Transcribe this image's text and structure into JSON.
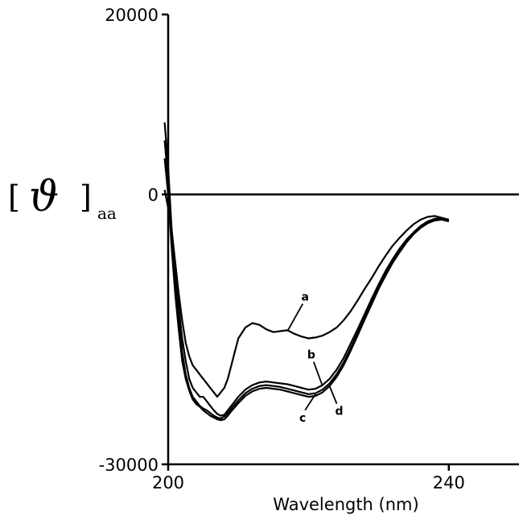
{
  "chart_data": {
    "type": "line",
    "title": "",
    "xlabel": "Wavelength (nm)",
    "ylabel": {
      "bracket_open": "[",
      "symbol": "ϑ",
      "bracket_close": "]",
      "subscript": "aa"
    },
    "xlim": [
      200,
      250
    ],
    "ylim": [
      -30000,
      20000
    ],
    "x_ticks": [
      200,
      240
    ],
    "y_ticks": [
      20000,
      0,
      -30000
    ],
    "zero_line": true,
    "grid": false,
    "legend": "none",
    "series": [
      {
        "name": "a",
        "x": [
          199.5,
          200,
          200.5,
          201,
          201.5,
          202,
          202.5,
          203,
          203.5,
          204,
          204.5,
          205,
          205.5,
          206,
          206.5,
          207,
          207.5,
          208,
          208.5,
          209,
          209.5,
          210,
          211,
          212,
          213,
          214,
          215,
          216,
          217,
          218,
          219,
          220,
          221,
          222,
          223,
          224,
          225,
          226,
          227,
          228,
          229,
          230,
          231,
          232,
          233,
          234,
          235,
          236,
          237,
          238,
          239,
          240
        ],
        "y": [
          500,
          -1500,
          -4000,
          -7500,
          -11000,
          -14000,
          -16500,
          -18000,
          -19000,
          -19500,
          -20000,
          -20500,
          -21000,
          -21500,
          -22000,
          -22500,
          -22000,
          -21500,
          -20500,
          -19000,
          -17500,
          -16000,
          -14800,
          -14300,
          -14500,
          -15000,
          -15300,
          -15200,
          -15100,
          -15500,
          -15800,
          -16000,
          -15900,
          -15700,
          -15300,
          -14800,
          -14000,
          -13000,
          -11800,
          -10500,
          -9300,
          -8000,
          -6800,
          -5700,
          -4800,
          -4000,
          -3300,
          -2800,
          -2500,
          -2400,
          -2600,
          -3000
        ]
      },
      {
        "name": "b",
        "x": [
          199.5,
          200,
          200.5,
          201,
          201.5,
          202,
          202.5,
          203,
          203.5,
          204,
          204.5,
          205,
          205.5,
          206,
          206.5,
          207,
          207.5,
          208,
          208.5,
          209,
          210,
          211,
          212,
          213,
          214,
          215,
          216,
          217,
          218,
          219,
          220,
          221,
          222,
          223,
          224,
          225,
          226,
          227,
          228,
          229,
          230,
          231,
          232,
          233,
          234,
          235,
          236,
          237,
          238,
          239,
          240
        ],
        "y": [
          8000,
          3000,
          -4000,
          -9000,
          -12500,
          -16000,
          -18500,
          -20500,
          -21500,
          -22000,
          -22500,
          -22500,
          -23000,
          -23500,
          -24000,
          -24400,
          -24600,
          -24500,
          -24000,
          -23500,
          -22500,
          -21700,
          -21200,
          -20900,
          -20800,
          -20900,
          -21000,
          -21100,
          -21300,
          -21500,
          -21700,
          -21600,
          -21200,
          -20500,
          -19500,
          -18200,
          -16600,
          -15000,
          -13300,
          -11600,
          -10000,
          -8500,
          -7200,
          -6000,
          -5000,
          -4200,
          -3500,
          -3000,
          -2700,
          -2600,
          -2800
        ]
      },
      {
        "name": "c",
        "x": [
          199.5,
          200,
          200.5,
          201,
          201.5,
          202,
          202.5,
          203,
          203.5,
          204,
          204.5,
          205,
          205.5,
          206,
          206.5,
          207,
          207.5,
          208,
          208.5,
          209,
          210,
          211,
          212,
          213,
          214,
          215,
          216,
          217,
          218,
          219,
          220,
          221,
          222,
          223,
          224,
          225,
          226,
          227,
          228,
          229,
          230,
          231,
          232,
          233,
          234,
          235,
          236,
          237,
          238,
          239,
          240
        ],
        "y": [
          6000,
          1500,
          -5000,
          -10000,
          -14000,
          -17500,
          -20000,
          -21500,
          -22500,
          -23000,
          -23500,
          -23800,
          -24000,
          -24300,
          -24600,
          -24800,
          -24900,
          -24700,
          -24300,
          -23800,
          -22900,
          -22100,
          -21600,
          -21300,
          -21200,
          -21300,
          -21400,
          -21600,
          -21800,
          -22000,
          -22200,
          -22100,
          -21700,
          -21000,
          -20000,
          -18700,
          -17100,
          -15400,
          -13700,
          -12000,
          -10300,
          -8800,
          -7400,
          -6200,
          -5200,
          -4300,
          -3600,
          -3100,
          -2800,
          -2700,
          -2900
        ]
      },
      {
        "name": "d",
        "x": [
          199.5,
          200,
          200.5,
          201,
          201.5,
          202,
          202.5,
          203,
          203.5,
          204,
          204.5,
          205,
          205.5,
          206,
          206.5,
          207,
          207.5,
          208,
          208.5,
          209,
          210,
          211,
          212,
          213,
          214,
          215,
          216,
          217,
          218,
          219,
          220,
          221,
          222,
          223,
          224,
          225,
          226,
          227,
          228,
          229,
          230,
          231,
          232,
          233,
          234,
          235,
          236,
          237,
          238,
          239,
          240
        ],
        "y": [
          4000,
          0,
          -6000,
          -11000,
          -15000,
          -18500,
          -20500,
          -21800,
          -22800,
          -23300,
          -23600,
          -24000,
          -24300,
          -24600,
          -24800,
          -25000,
          -25100,
          -25000,
          -24600,
          -24100,
          -23200,
          -22400,
          -21900,
          -21600,
          -21500,
          -21600,
          -21700,
          -21900,
          -22100,
          -22300,
          -22500,
          -22400,
          -22000,
          -21300,
          -20300,
          -19000,
          -17400,
          -15700,
          -13900,
          -12200,
          -10500,
          -9000,
          -7600,
          -6400,
          -5300,
          -4400,
          -3700,
          -3200,
          -2900,
          -2800,
          -3000
        ]
      }
    ]
  }
}
